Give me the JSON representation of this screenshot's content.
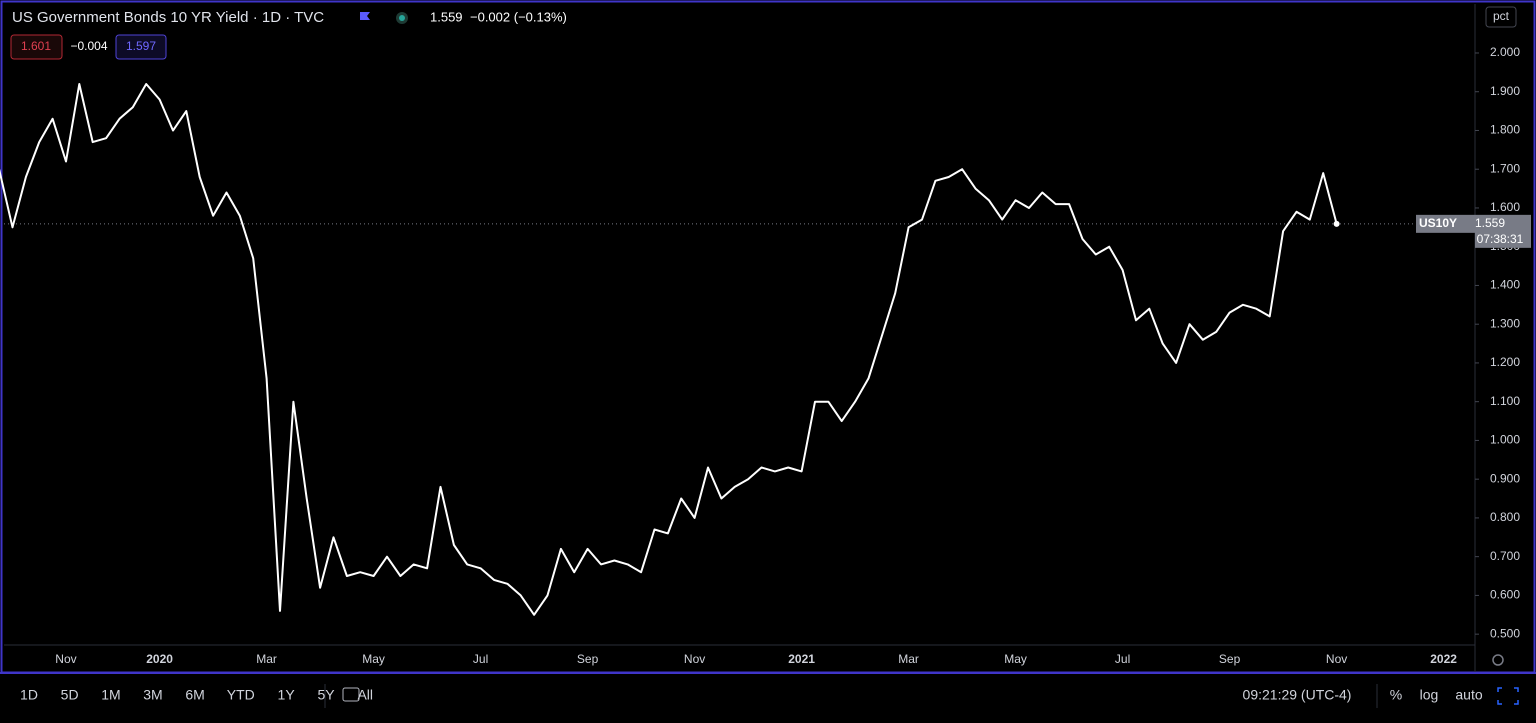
{
  "chart_data": {
    "type": "line",
    "title": "US Government Bonds 10 YR Yield · 1D · TVC",
    "categories": [
      null,
      null,
      null,
      null,
      null,
      "Nov",
      null,
      null,
      null,
      null,
      null,
      null,
      "2020",
      null,
      null,
      null,
      null,
      null,
      null,
      null,
      "Mar",
      null,
      null,
      null,
      null,
      null,
      null,
      null,
      "May",
      null,
      null,
      null,
      null,
      null,
      null,
      null,
      "Jul",
      null,
      null,
      null,
      null,
      null,
      null,
      null,
      "Sep",
      null,
      null,
      null,
      null,
      null,
      null,
      null,
      "Nov",
      null,
      null,
      null,
      null,
      null,
      null,
      null,
      "2021",
      null,
      null,
      null,
      null,
      null,
      null,
      null,
      "Mar",
      null,
      null,
      null,
      null,
      null,
      null,
      null,
      "May",
      null,
      null,
      null,
      null,
      null,
      null,
      null,
      "Jul",
      null,
      null,
      null,
      null,
      null,
      null,
      null,
      "Sep",
      null,
      null,
      null,
      null,
      null,
      null,
      null,
      "Nov",
      null,
      null,
      null,
      null,
      null,
      null,
      null,
      "2022"
    ],
    "series": [
      {
        "name": "US10Y",
        "color": "#ffffff",
        "values": [
          1.7,
          1.55,
          1.68,
          1.77,
          1.83,
          1.72,
          1.92,
          1.77,
          1.78,
          1.83,
          1.86,
          1.92,
          1.88,
          1.8,
          1.85,
          1.68,
          1.58,
          1.64,
          1.58,
          1.47,
          1.16,
          0.56,
          1.1,
          0.85,
          0.62,
          0.75,
          0.65,
          0.66,
          0.65,
          0.7,
          0.65,
          0.68,
          0.67,
          0.88,
          0.73,
          0.68,
          0.67,
          0.64,
          0.63,
          0.6,
          0.55,
          0.6,
          0.72,
          0.66,
          0.72,
          0.68,
          0.69,
          0.68,
          0.66,
          0.77,
          0.76,
          0.85,
          0.8,
          0.93,
          0.85,
          0.88,
          0.9,
          0.93,
          0.92,
          0.93,
          0.92,
          1.1,
          1.1,
          1.05,
          1.1,
          1.16,
          1.27,
          1.38,
          1.55,
          1.57,
          1.67,
          1.68,
          1.7,
          1.65,
          1.62,
          1.57,
          1.62,
          1.6,
          1.64,
          1.61,
          1.61,
          1.52,
          1.48,
          1.5,
          1.44,
          1.31,
          1.34,
          1.25,
          1.2,
          1.3,
          1.26,
          1.28,
          1.33,
          1.35,
          1.34,
          1.32,
          1.54,
          1.59,
          1.57,
          1.69,
          1.559,
          null,
          null,
          null,
          null,
          null,
          null,
          null,
          null
        ]
      }
    ],
    "ylim": [
      0.472,
      2.129
    ],
    "yticks": [
      {
        "value": 0.5,
        "label": "0.500"
      },
      {
        "value": 0.6,
        "label": "0.600"
      },
      {
        "value": 0.7,
        "label": "0.700"
      },
      {
        "value": 0.8,
        "label": "0.800"
      },
      {
        "value": 0.9,
        "label": "0.900"
      },
      {
        "value": 1.0,
        "label": "1.000"
      },
      {
        "value": 1.1,
        "label": "1.100"
      },
      {
        "value": 1.2,
        "label": "1.200"
      },
      {
        "value": 1.3,
        "label": "1.300"
      },
      {
        "value": 1.4,
        "label": "1.400"
      },
      {
        "value": 1.5,
        "label": "1.500"
      },
      {
        "value": 1.6,
        "label": "1.600"
      },
      {
        "value": 1.7,
        "label": "1.700"
      },
      {
        "value": 1.8,
        "label": "1.800"
      },
      {
        "value": 1.9,
        "label": "1.900"
      },
      {
        "value": 2.0,
        "label": "2.000"
      }
    ],
    "grid": false
  },
  "header": {
    "quote": "1.559",
    "change": "−0.002 (−0.13%)",
    "bid": "1.601",
    "spread": "−0.004",
    "ask": "1.597"
  },
  "price_tag": {
    "symbol": "US10Y",
    "price": "1.559",
    "countdown": "07:38:31"
  },
  "scale_button": "pct",
  "toolbar": {
    "ranges": [
      "1D",
      "5D",
      "1M",
      "3M",
      "6M",
      "YTD",
      "1Y",
      "5Y",
      "All"
    ],
    "clock": "09:21:29 (UTC-4)",
    "percent": "%",
    "log": "log",
    "auto": "auto"
  }
}
